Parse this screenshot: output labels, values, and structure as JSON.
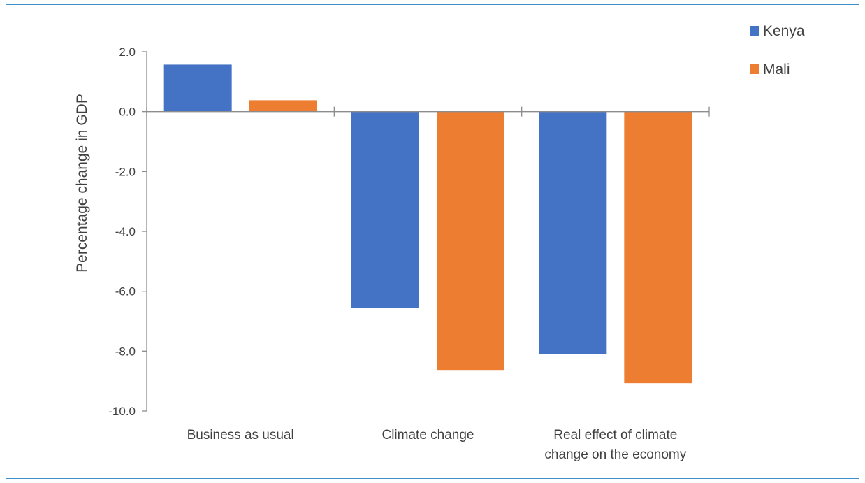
{
  "chart_data": {
    "type": "bar",
    "title": "",
    "xlabel": "",
    "ylabel": "Percentage change in GDP",
    "ylim": [
      -10,
      2
    ],
    "ytick_step": 2,
    "ytick_labels": [
      "2.0",
      "0.0",
      "-2.0",
      "-4.0",
      "-6.0",
      "-8.0",
      "-10.0"
    ],
    "categories": [
      [
        "Business as usual"
      ],
      [
        "Climate change"
      ],
      [
        "Real effect of climate",
        "change on the economy"
      ]
    ],
    "series": [
      {
        "name": "Kenya",
        "color": "#4472c4",
        "values": [
          1.57,
          -6.55,
          -8.1
        ]
      },
      {
        "name": "Mali",
        "color": "#ed7d31",
        "values": [
          0.38,
          -8.65,
          -9.07
        ]
      }
    ],
    "legend": "top-right",
    "grid": false
  }
}
